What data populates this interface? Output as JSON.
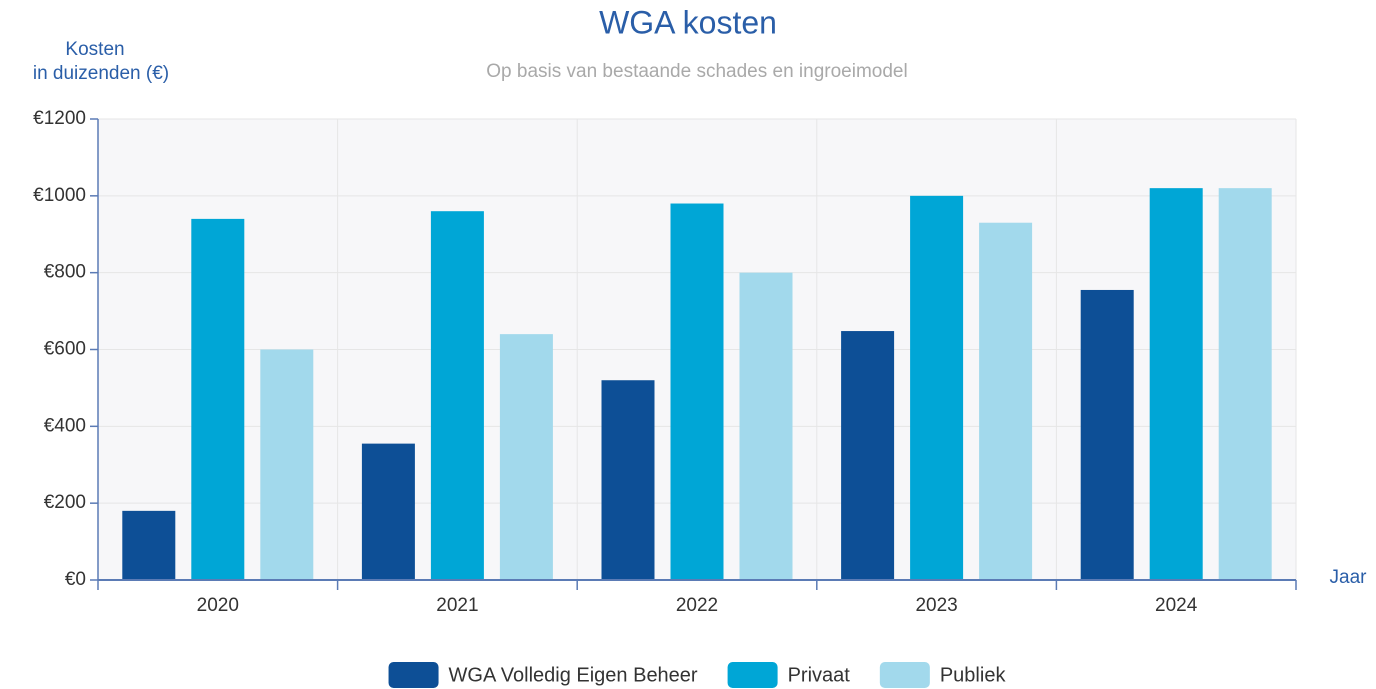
{
  "chart_data": {
    "type": "bar",
    "title": "WGA kosten",
    "subtitle": "Op basis van bestaande schades en ingroeimodel",
    "y_label": [
      "Kosten",
      "in duizenden (€)"
    ],
    "x_label": "Jaar",
    "categories": [
      "2020",
      "2021",
      "2022",
      "2023",
      "2024"
    ],
    "series": [
      {
        "name": "WGA Volledig Eigen Beheer",
        "color": "#0d4f96",
        "values": [
          180,
          355,
          520,
          648,
          755
        ]
      },
      {
        "name": "Privaat",
        "color": "#00a6d6",
        "values": [
          940,
          960,
          980,
          1000,
          1020
        ]
      },
      {
        "name": "Publiek",
        "color": "#a2d9ec",
        "values": [
          600,
          640,
          800,
          930,
          1020
        ]
      }
    ],
    "ylim": [
      0,
      1200
    ],
    "yticks": [
      {
        "value": 0,
        "label": "€0"
      },
      {
        "value": 200,
        "label": "€200"
      },
      {
        "value": 400,
        "label": "€400"
      },
      {
        "value": 600,
        "label": "€600"
      },
      {
        "value": 800,
        "label": "€800"
      },
      {
        "value": 1000,
        "label": "€1000"
      },
      {
        "value": 1200,
        "label": "€1200"
      }
    ],
    "grid": true
  }
}
